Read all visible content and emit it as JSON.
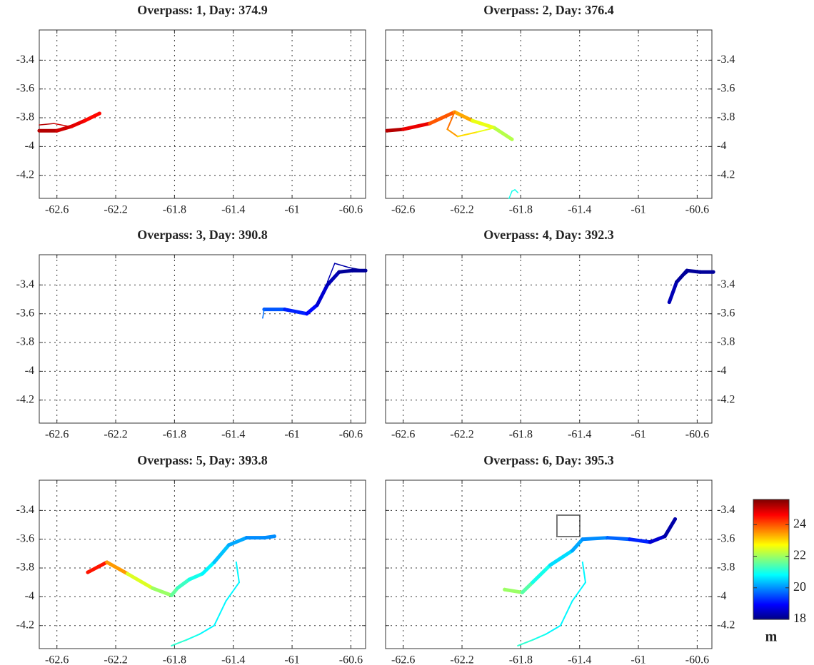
{
  "chart_data": [
    {
      "type": "river-map",
      "title": "Overpass: 1, Day: 374.9",
      "xlim": [
        -62.72,
        -60.5
      ],
      "ylim": [
        -4.36,
        -3.19
      ],
      "xticks": [
        -62.6,
        -62.2,
        -61.8,
        -61.4,
        -61,
        -60.6
      ],
      "yticks": [
        -3.4,
        -3.6,
        -3.8,
        -4,
        -4.2
      ],
      "grid": true,
      "yaxis_side": "left",
      "series": [
        {
          "x": [
            -62.72,
            -62.6,
            -62.5,
            -62.41,
            -62.31
          ],
          "y": [
            -3.89,
            -3.89,
            -3.86,
            -3.82,
            -3.77
          ],
          "values": [
            25.3,
            25.2,
            25,
            24.8,
            24.6
          ]
        },
        {
          "x": [
            -62.72,
            -62.62,
            -62.52,
            -62.45
          ],
          "y": [
            -3.85,
            -3.84,
            -3.86,
            -3.84
          ],
          "values": [
            25.3,
            25.2,
            25,
            24.9
          ]
        }
      ]
    },
    {
      "type": "river-map",
      "title": "Overpass: 2, Day: 376.4",
      "xlim": [
        -62.72,
        -60.5
      ],
      "ylim": [
        -4.36,
        -3.19
      ],
      "xticks": [
        -62.6,
        -62.2,
        -61.8,
        -61.4,
        -61,
        -60.6
      ],
      "yticks": [
        -3.4,
        -3.6,
        -3.8,
        -4,
        -4.2
      ],
      "grid": true,
      "yaxis_side": "right",
      "series": [
        {
          "x": [
            -62.71,
            -62.6,
            -62.42,
            -62.25,
            -62.13,
            -61.98,
            -61.86
          ],
          "y": [
            -3.89,
            -3.88,
            -3.84,
            -3.76,
            -3.82,
            -3.87,
            -3.95
          ],
          "values": [
            25.3,
            25.2,
            24.8,
            24,
            23.4,
            22.6,
            22.2
          ]
        },
        {
          "x": [
            -62.25,
            -62.3,
            -62.23,
            -62.1,
            -61.98
          ],
          "y": [
            -3.76,
            -3.88,
            -3.93,
            -3.9,
            -3.87
          ],
          "values": [
            24,
            23.8,
            23.5,
            23,
            22.6
          ]
        },
        {
          "x": [
            -61.88,
            -61.86,
            -61.84,
            -61.82
          ],
          "y": [
            -4.36,
            -4.31,
            -4.3,
            -4.32
          ],
          "values": [
            21,
            21,
            21,
            21
          ]
        }
      ]
    },
    {
      "type": "river-map",
      "title": "Overpass: 3, Day: 390.8",
      "xlim": [
        -62.72,
        -60.5
      ],
      "ylim": [
        -4.36,
        -3.19
      ],
      "xticks": [
        -62.6,
        -62.2,
        -61.8,
        -61.4,
        -61,
        -60.6
      ],
      "yticks": [
        -3.4,
        -3.6,
        -3.8,
        -4,
        -4.2
      ],
      "grid": true,
      "yaxis_side": "left",
      "series": [
        {
          "x": [
            -61.19,
            -61.05,
            -60.9,
            -60.83,
            -60.76,
            -60.68,
            -60.59,
            -60.5
          ],
          "y": [
            -3.57,
            -3.57,
            -3.6,
            -3.54,
            -3.4,
            -3.31,
            -3.3,
            -3.3
          ],
          "values": [
            19.8,
            19.6,
            19.2,
            19,
            18.6,
            18.4,
            18.2,
            18.2
          ]
        },
        {
          "x": [
            -61.2,
            -61.19
          ],
          "y": [
            -3.63,
            -3.57
          ],
          "values": [
            19.8,
            19.8
          ]
        },
        {
          "x": [
            -60.76,
            -60.71,
            -60.61,
            -60.5
          ],
          "y": [
            -3.38,
            -3.25,
            -3.28,
            -3.3
          ],
          "values": [
            18.6,
            18.4,
            18.3,
            18.2
          ]
        }
      ]
    },
    {
      "type": "river-map",
      "title": "Overpass: 4, Day: 392.3",
      "xlim": [
        -62.72,
        -60.5
      ],
      "ylim": [
        -4.36,
        -3.19
      ],
      "xticks": [
        -62.6,
        -62.2,
        -61.8,
        -61.4,
        -61,
        -60.6
      ],
      "yticks": [
        -3.4,
        -3.6,
        -3.8,
        -4,
        -4.2
      ],
      "grid": true,
      "yaxis_side": "right",
      "series": [
        {
          "x": [
            -60.79,
            -60.74,
            -60.67,
            -60.58,
            -60.49
          ],
          "y": [
            -3.52,
            -3.38,
            -3.3,
            -3.31,
            -3.31
          ],
          "values": [
            18.8,
            18.4,
            18.2,
            18.2,
            18.2
          ]
        },
        {
          "x": [
            -60.78,
            -60.72,
            -60.66
          ],
          "y": [
            -3.47,
            -3.36,
            -3.31
          ],
          "values": [
            18.6,
            18.4,
            18.2
          ]
        }
      ]
    },
    {
      "type": "river-map",
      "title": "Overpass: 5, Day: 393.8",
      "xlim": [
        -62.72,
        -60.5
      ],
      "ylim": [
        -4.36,
        -3.19
      ],
      "xticks": [
        -62.6,
        -62.2,
        -61.8,
        -61.4,
        -61,
        -60.6
      ],
      "yticks": [
        -3.4,
        -3.6,
        -3.8,
        -4,
        -4.2
      ],
      "grid": true,
      "yaxis_side": "left",
      "series": [
        {
          "x": [
            -62.39,
            -62.26,
            -62.12,
            -61.95,
            -61.82,
            -61.78,
            -61.7,
            -61.61,
            -61.53,
            -61.43,
            -61.31,
            -61.19,
            -61.12
          ],
          "y": [
            -3.83,
            -3.76,
            -3.84,
            -3.94,
            -3.99,
            -3.94,
            -3.88,
            -3.84,
            -3.76,
            -3.64,
            -3.59,
            -3.59,
            -3.58
          ],
          "values": [
            25,
            24.5,
            23.5,
            22.5,
            22,
            21.6,
            21.3,
            21,
            20.8,
            20.4,
            20.2,
            20,
            20
          ]
        },
        {
          "x": [
            -61.38,
            -61.36,
            -61.45,
            -61.53,
            -61.63,
            -61.72,
            -61.82
          ],
          "y": [
            -3.76,
            -3.9,
            -4.03,
            -4.2,
            -4.26,
            -4.3,
            -4.34
          ],
          "values": [
            20.8,
            20.8,
            20.8,
            20.8,
            20.8,
            21,
            21.2
          ]
        }
      ]
    },
    {
      "type": "river-map",
      "title": "Overpass: 6, Day: 395.3",
      "xlim": [
        -62.72,
        -60.5
      ],
      "ylim": [
        -4.36,
        -3.19
      ],
      "xticks": [
        -62.6,
        -62.2,
        -61.8,
        -61.4,
        -61,
        -60.6
      ],
      "yticks": [
        -3.4,
        -3.6,
        -3.8,
        -4,
        -4.2
      ],
      "grid": true,
      "yaxis_side": "right",
      "series": [
        {
          "x": [
            -61.91,
            -61.79,
            -61.72,
            -61.6,
            -61.45,
            -61.38,
            -61.21,
            -61.06,
            -60.92,
            -60.82,
            -60.75
          ],
          "y": [
            -3.95,
            -3.97,
            -3.9,
            -3.78,
            -3.68,
            -3.6,
            -3.59,
            -3.6,
            -3.62,
            -3.58,
            -3.46
          ],
          "values": [
            22.3,
            22,
            21.5,
            21,
            20.6,
            20.2,
            20,
            19.7,
            19.2,
            18.6,
            18.3
          ]
        },
        {
          "x": [
            -61.38,
            -61.36,
            -61.45,
            -61.53,
            -61.63,
            -61.72,
            -61.82
          ],
          "y": [
            -3.76,
            -3.9,
            -4.03,
            -4.2,
            -4.26,
            -4.3,
            -4.34
          ],
          "values": [
            20.8,
            20.8,
            20.8,
            20.8,
            20.8,
            21,
            21.2
          ]
        }
      ]
    }
  ],
  "colorbar": {
    "label": "m",
    "colormap": "jet",
    "clim": [
      18,
      25.6
    ],
    "ticks": [
      18,
      20,
      22,
      24
    ]
  }
}
